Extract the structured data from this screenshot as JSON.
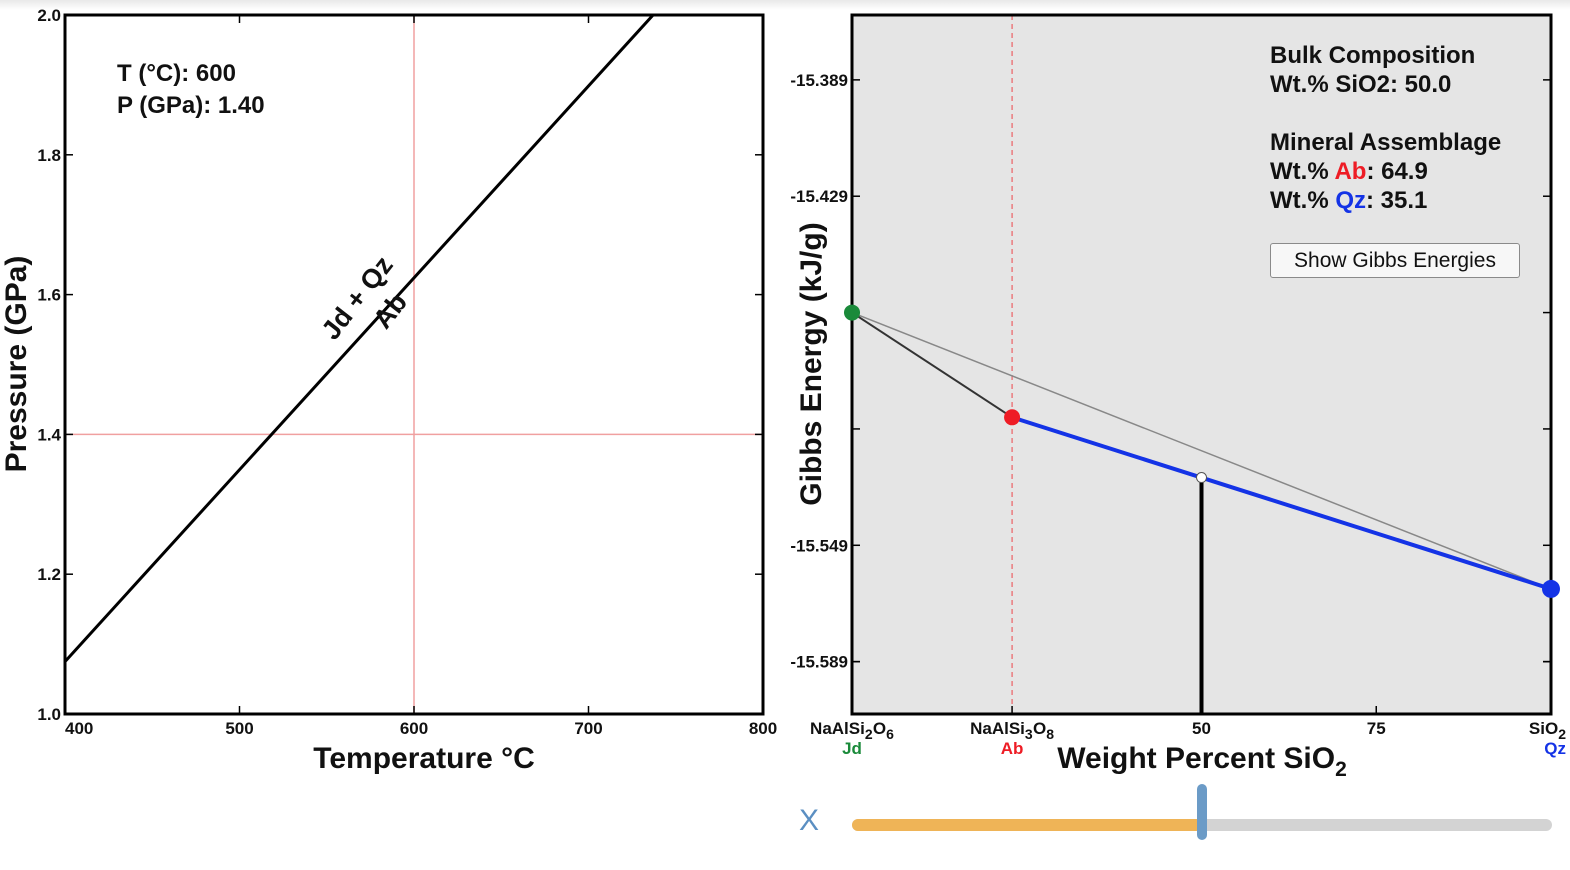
{
  "pt_panel": {
    "t_label": "T (°C): 600",
    "p_label": "P (GPa): 1.40"
  },
  "info_panel": {
    "bulk_title": "Bulk Composition",
    "bulk_line": "Wt.% SiO2: 50.0",
    "assemblage_title": "Mineral Assemblage",
    "ab_prefix": "Wt.% ",
    "ab_name": "Ab",
    "ab_value": ": 64.9",
    "qz_prefix": "Wt.% ",
    "qz_name": "Qz",
    "qz_value": ": 35.1",
    "button_label": "Show Gibbs Energies"
  },
  "slider": {
    "label": "X",
    "value_wt_pct_sio2": 50.0,
    "range": [
      0,
      100
    ]
  },
  "colors": {
    "jd": "#1a8a3a",
    "ab": "#ee1c25",
    "qz": "#1433e6",
    "crosshair": "#f0a0a0",
    "plot_bg": "#e5e5e5",
    "slider_fill": "#efb457",
    "slider_track": "#d3d3d3",
    "slider_handle": "#6b9bc7"
  },
  "chart_data": [
    {
      "type": "line",
      "title": "",
      "xlabel": "Temperature °C",
      "ylabel": "Pressure (GPa)",
      "xlim": [
        400,
        800
      ],
      "ylim": [
        1.0,
        2.0
      ],
      "x_ticks": [
        "400",
        "500",
        "600",
        "700",
        "800"
      ],
      "y_ticks": [
        "1.0",
        "1.2",
        "1.4",
        "1.6",
        "1.8",
        "2.0"
      ],
      "series": [
        {
          "x": [
            400,
            737
          ],
          "y": [
            1.075,
            2.0
          ]
        }
      ],
      "reaction_label_upper": "Jd + Qz",
      "reaction_label_lower": "Ab",
      "crosshair": {
        "x": 600,
        "y": 1.4
      },
      "grid": false
    },
    {
      "type": "line",
      "title": "",
      "xlabel_main": "Weight Percent SiO",
      "xlabel_sub": "2",
      "ylabel": "Gibbs Energy (kJ/g)",
      "xlim": [
        0,
        100
      ],
      "ylim": [
        -15.607,
        -15.3667
      ],
      "y_ticks": [
        "-15.389",
        "-15.429",
        "-15.549",
        "-15.589"
      ],
      "x_ticks": [
        {
          "x": 0,
          "formula": [
            [
              "NaAlSi",
              false
            ],
            [
              "2",
              true
            ],
            [
              "O",
              false
            ],
            [
              "6",
              true
            ]
          ],
          "mineral": "Jd",
          "color": "#1a8a3a",
          "align": "middle"
        },
        {
          "x": 22.9,
          "formula": [
            [
              "NaAlSi",
              false
            ],
            [
              "3",
              true
            ],
            [
              "O",
              false
            ],
            [
              "8",
              true
            ]
          ],
          "mineral": "Ab",
          "color": "#ee1c25",
          "align": "middle"
        },
        {
          "x": 50,
          "label": "50"
        },
        {
          "x": 75,
          "label": "75"
        },
        {
          "x": 100,
          "formula": [
            [
              "SiO",
              false
            ],
            [
              "2",
              true
            ]
          ],
          "mineral": "Qz",
          "color": "#1433e6",
          "align": "end"
        }
      ],
      "points": [
        {
          "name": "Jd",
          "x": 0,
          "y": -15.469
        },
        {
          "name": "Ab",
          "x": 22.9,
          "y": -15.505
        },
        {
          "name": "Qz",
          "x": 100,
          "y": -15.564
        }
      ],
      "tangent_line": {
        "x": [
          22.9,
          100
        ],
        "y": [
          -15.505,
          -15.564
        ]
      },
      "bulk_point": {
        "x": 50,
        "y": -15.5257
      },
      "grid": false
    }
  ]
}
